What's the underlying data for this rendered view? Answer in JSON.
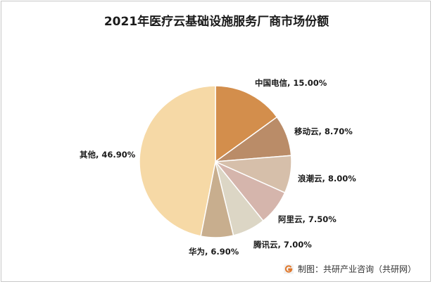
{
  "chart_data": {
    "type": "pie",
    "title": "2021年医疗云基础设施服务厂商市场份额",
    "slices": [
      {
        "name": "中国电信",
        "value": 15.0,
        "label": "中国电信, 15.00%",
        "color": "#D38E4C"
      },
      {
        "name": "移动云",
        "value": 8.7,
        "label": "移动云, 8.70%",
        "color": "#BA8C68"
      },
      {
        "name": "浪潮云",
        "value": 8.0,
        "label": "浪潮云, 8.00%",
        "color": "#D6BFAA"
      },
      {
        "name": "阿里云",
        "value": 7.5,
        "label": "阿里云, 7.50%",
        "color": "#D5B5AC"
      },
      {
        "name": "腾讯云",
        "value": 7.0,
        "label": "腾讯云, 7.00%",
        "color": "#DCD6C5"
      },
      {
        "name": "华为",
        "value": 6.9,
        "label": "华为, 6.90%",
        "color": "#C8AE8E"
      },
      {
        "name": "其他",
        "value": 46.9,
        "label": "其他, 46.90%",
        "color": "#F6D9A6"
      }
    ]
  },
  "footer": {
    "source_text": "制图：共研产业咨询（共研网）",
    "logo_icon": "gongyan-logo-icon"
  }
}
